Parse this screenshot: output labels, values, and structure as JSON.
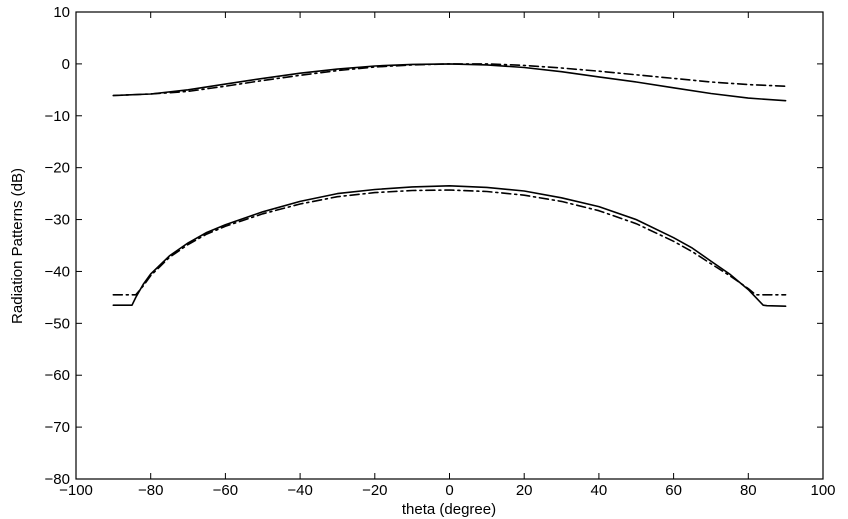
{
  "chart_data": {
    "type": "line",
    "xlabel": "theta (degree)",
    "ylabel": "Radiation Patterns (dB)",
    "xlim": [
      -100,
      100
    ],
    "ylim": [
      -80,
      10
    ],
    "xticks": [
      -100,
      -80,
      -60,
      -40,
      -20,
      0,
      20,
      40,
      60,
      80,
      100
    ],
    "yticks": [
      10,
      0,
      -10,
      -20,
      -30,
      -40,
      -50,
      -60,
      -70,
      -80
    ],
    "grid": false,
    "legend": "none",
    "series": [
      {
        "style": "solid",
        "color": "#000000",
        "x": [
          -90,
          -80,
          -70,
          -60,
          -50,
          -40,
          -30,
          -20,
          -10,
          0,
          10,
          20,
          30,
          40,
          50,
          60,
          70,
          80,
          90
        ],
        "y": [
          -6.1,
          -5.8,
          -5.0,
          -3.9,
          -2.8,
          -1.8,
          -1.0,
          -0.4,
          -0.1,
          0.0,
          -0.2,
          -0.7,
          -1.5,
          -2.5,
          -3.5,
          -4.6,
          -5.7,
          -6.6,
          -7.1
        ]
      },
      {
        "style": "dashdot",
        "color": "#000000",
        "x": [
          -90,
          -80,
          -70,
          -60,
          -50,
          -40,
          -30,
          -20,
          -10,
          0,
          10,
          20,
          30,
          40,
          50,
          60,
          70,
          80,
          90
        ],
        "y": [
          -6.1,
          -5.8,
          -5.3,
          -4.3,
          -3.2,
          -2.2,
          -1.3,
          -0.6,
          -0.2,
          0.0,
          0.0,
          -0.3,
          -0.8,
          -1.4,
          -2.1,
          -2.8,
          -3.5,
          -4.0,
          -4.3
        ]
      },
      {
        "style": "solid",
        "color": "#000000",
        "x": [
          -90,
          -85,
          -84,
          -82,
          -80,
          -75,
          -70,
          -65,
          -60,
          -50,
          -40,
          -30,
          -20,
          -10,
          0,
          10,
          20,
          30,
          40,
          50,
          60,
          65,
          70,
          75,
          80,
          82,
          84,
          85,
          90
        ],
        "y": [
          -46.5,
          -46.5,
          -45.0,
          -42.5,
          -40.5,
          -37.0,
          -34.5,
          -32.5,
          -31.0,
          -28.5,
          -26.5,
          -25.0,
          -24.2,
          -23.7,
          -23.5,
          -23.8,
          -24.5,
          -25.8,
          -27.5,
          -30.0,
          -33.5,
          -35.5,
          -38.0,
          -40.5,
          -43.5,
          -45.0,
          -46.5,
          -46.6,
          -46.7
        ]
      },
      {
        "style": "dashdot",
        "color": "#000000",
        "x": [
          -90,
          -84,
          -82,
          -80,
          -75,
          -70,
          -65,
          -60,
          -50,
          -40,
          -30,
          -20,
          -10,
          0,
          10,
          20,
          30,
          40,
          50,
          60,
          65,
          70,
          75,
          80,
          82,
          84,
          90
        ],
        "y": [
          -44.5,
          -44.5,
          -42.8,
          -40.8,
          -37.3,
          -34.8,
          -32.8,
          -31.3,
          -28.9,
          -27.0,
          -25.6,
          -24.8,
          -24.4,
          -24.3,
          -24.6,
          -25.3,
          -26.5,
          -28.3,
          -30.8,
          -34.2,
          -36.2,
          -38.5,
          -40.8,
          -43.3,
          -44.5,
          -44.5,
          -44.5
        ]
      }
    ]
  }
}
